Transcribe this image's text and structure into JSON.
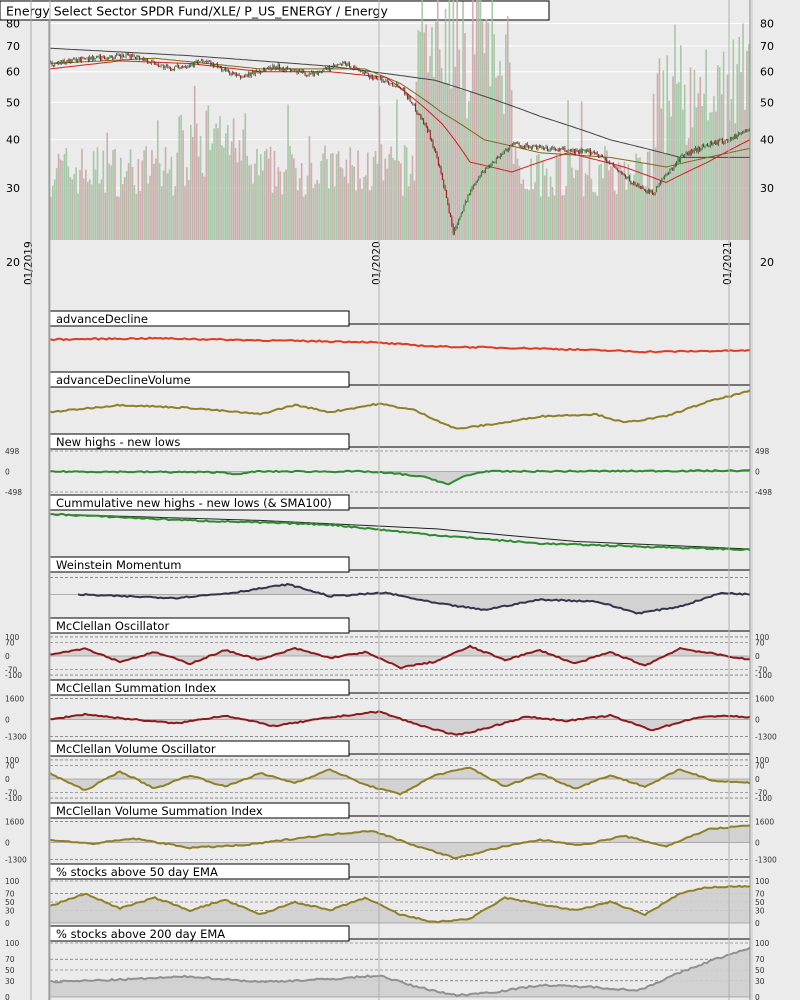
{
  "chart_data": {
    "type": "line",
    "title": "Energy Select Sector SPDR Fund/XLE/ P_US_ENERGY / Energy",
    "main": {
      "subtype": "candlestick",
      "y_scale": "log",
      "ylim": [
        22,
        92
      ],
      "y_ticks_left": [
        80,
        70,
        60,
        50,
        40,
        30,
        20
      ],
      "y_ticks_right": [
        80,
        70,
        60,
        50,
        40,
        30,
        20
      ],
      "x_ticks": [
        "01/2019",
        "01/2020",
        "01/2021"
      ],
      "price_path": [
        {
          "x": 0.0,
          "y": 63
        },
        {
          "x": 0.05,
          "y": 65
        },
        {
          "x": 0.12,
          "y": 66
        },
        {
          "x": 0.17,
          "y": 61
        },
        {
          "x": 0.22,
          "y": 64
        },
        {
          "x": 0.27,
          "y": 58
        },
        {
          "x": 0.32,
          "y": 62
        },
        {
          "x": 0.37,
          "y": 59
        },
        {
          "x": 0.42,
          "y": 63
        },
        {
          "x": 0.45,
          "y": 59
        },
        {
          "x": 0.5,
          "y": 55
        },
        {
          "x": 0.54,
          "y": 42
        },
        {
          "x": 0.575,
          "y": 23
        },
        {
          "x": 0.61,
          "y": 32
        },
        {
          "x": 0.66,
          "y": 39
        },
        {
          "x": 0.7,
          "y": 38
        },
        {
          "x": 0.78,
          "y": 37
        },
        {
          "x": 0.83,
          "y": 31
        },
        {
          "x": 0.86,
          "y": 29
        },
        {
          "x": 0.9,
          "y": 36
        },
        {
          "x": 0.94,
          "y": 39
        },
        {
          "x": 0.97,
          "y": 40
        },
        {
          "x": 1.0,
          "y": 43
        }
      ],
      "ma_red": [
        {
          "x": 0.0,
          "y": 61
        },
        {
          "x": 0.1,
          "y": 64
        },
        {
          "x": 0.2,
          "y": 63
        },
        {
          "x": 0.3,
          "y": 60
        },
        {
          "x": 0.4,
          "y": 60
        },
        {
          "x": 0.48,
          "y": 58
        },
        {
          "x": 0.56,
          "y": 44
        },
        {
          "x": 0.6,
          "y": 35
        },
        {
          "x": 0.66,
          "y": 33
        },
        {
          "x": 0.74,
          "y": 37
        },
        {
          "x": 0.82,
          "y": 34
        },
        {
          "x": 0.88,
          "y": 31
        },
        {
          "x": 0.94,
          "y": 35
        },
        {
          "x": 1.0,
          "y": 40
        }
      ],
      "ma_olive": [
        {
          "x": 0.0,
          "y": 63
        },
        {
          "x": 0.15,
          "y": 65
        },
        {
          "x": 0.3,
          "y": 61
        },
        {
          "x": 0.45,
          "y": 61
        },
        {
          "x": 0.5,
          "y": 56
        },
        {
          "x": 0.56,
          "y": 47
        },
        {
          "x": 0.62,
          "y": 40
        },
        {
          "x": 0.7,
          "y": 37
        },
        {
          "x": 0.8,
          "y": 36
        },
        {
          "x": 0.88,
          "y": 34
        },
        {
          "x": 1.0,
          "y": 38
        }
      ],
      "ma_gray": [
        {
          "x": 0.0,
          "y": 69
        },
        {
          "x": 0.2,
          "y": 66
        },
        {
          "x": 0.4,
          "y": 62
        },
        {
          "x": 0.55,
          "y": 57
        },
        {
          "x": 0.7,
          "y": 46
        },
        {
          "x": 0.8,
          "y": 40
        },
        {
          "x": 0.9,
          "y": 36
        },
        {
          "x": 1.0,
          "y": 36
        }
      ]
    },
    "panels": [
      {
        "title": "advanceDecline",
        "color": "#e03a20",
        "fill": false,
        "left_ticks": [],
        "right_ticks": [],
        "series": [
          {
            "x": 0,
            "y": 0.72
          },
          {
            "x": 0.15,
            "y": 0.75
          },
          {
            "x": 0.3,
            "y": 0.7
          },
          {
            "x": 0.45,
            "y": 0.66
          },
          {
            "x": 0.55,
            "y": 0.55
          },
          {
            "x": 0.7,
            "y": 0.5
          },
          {
            "x": 0.85,
            "y": 0.42
          },
          {
            "x": 1.0,
            "y": 0.45
          }
        ]
      },
      {
        "title": "advanceDeclineVolume",
        "color": "#8f7f25",
        "fill": false,
        "left_ticks": [],
        "right_ticks": [],
        "series": [
          {
            "x": 0,
            "y": 0.45
          },
          {
            "x": 0.1,
            "y": 0.62
          },
          {
            "x": 0.2,
            "y": 0.55
          },
          {
            "x": 0.3,
            "y": 0.4
          },
          {
            "x": 0.35,
            "y": 0.62
          },
          {
            "x": 0.4,
            "y": 0.45
          },
          {
            "x": 0.47,
            "y": 0.65
          },
          {
            "x": 0.52,
            "y": 0.5
          },
          {
            "x": 0.58,
            "y": 0.05
          },
          {
            "x": 0.65,
            "y": 0.2
          },
          {
            "x": 0.7,
            "y": 0.35
          },
          {
            "x": 0.78,
            "y": 0.4
          },
          {
            "x": 0.82,
            "y": 0.2
          },
          {
            "x": 0.88,
            "y": 0.35
          },
          {
            "x": 0.94,
            "y": 0.7
          },
          {
            "x": 1.0,
            "y": 0.95
          }
        ]
      },
      {
        "title": "New highs - new lows",
        "color": "#2e8a2e",
        "fill": true,
        "left_ticks": [
          "498",
          "0",
          "-498"
        ],
        "right_ticks": [
          "498",
          "0",
          "-498"
        ],
        "series": [
          {
            "x": 0,
            "y": 0
          },
          {
            "x": 0.25,
            "y": -20
          },
          {
            "x": 0.27,
            "y": -80
          },
          {
            "x": 0.29,
            "y": 0
          },
          {
            "x": 0.45,
            "y": 0
          },
          {
            "x": 0.5,
            "y": -60
          },
          {
            "x": 0.54,
            "y": -150
          },
          {
            "x": 0.57,
            "y": -320
          },
          {
            "x": 0.59,
            "y": -120
          },
          {
            "x": 0.62,
            "y": 0
          },
          {
            "x": 1.0,
            "y": 20
          }
        ]
      },
      {
        "title": "Cummulative new highs - new lows (& SMA100)",
        "color": "#2e8a2e",
        "fill": false,
        "left_ticks": [],
        "right_ticks": [],
        "series": [
          {
            "x": 0,
            "y": 0.95
          },
          {
            "x": 0.2,
            "y": 0.8
          },
          {
            "x": 0.4,
            "y": 0.7
          },
          {
            "x": 0.55,
            "y": 0.45
          },
          {
            "x": 0.7,
            "y": 0.25
          },
          {
            "x": 1.0,
            "y": 0.1
          }
        ],
        "sma": [
          {
            "x": 0,
            "y": 0.95
          },
          {
            "x": 0.3,
            "y": 0.8
          },
          {
            "x": 0.55,
            "y": 0.6
          },
          {
            "x": 0.75,
            "y": 0.3
          },
          {
            "x": 1.0,
            "y": 0.12
          }
        ]
      },
      {
        "title": "Weinstein Momentum",
        "color": "#33334d",
        "fill": true,
        "left_ticks": [],
        "right_ticks": [],
        "series": [
          {
            "x": 0.04,
            "y": 0.0
          },
          {
            "x": 0.1,
            "y": -0.05
          },
          {
            "x": 0.18,
            "y": -0.1
          },
          {
            "x": 0.26,
            "y": 0.05
          },
          {
            "x": 0.34,
            "y": 0.3
          },
          {
            "x": 0.4,
            "y": -0.05
          },
          {
            "x": 0.48,
            "y": 0.05
          },
          {
            "x": 0.55,
            "y": -0.25
          },
          {
            "x": 0.62,
            "y": -0.45
          },
          {
            "x": 0.7,
            "y": -0.15
          },
          {
            "x": 0.78,
            "y": -0.2
          },
          {
            "x": 0.84,
            "y": -0.55
          },
          {
            "x": 0.9,
            "y": -0.35
          },
          {
            "x": 0.96,
            "y": 0.05
          },
          {
            "x": 1.0,
            "y": 0.0
          }
        ]
      },
      {
        "title": "McClellan Oscillator",
        "color": "#8b1a1a",
        "fill": true,
        "left_ticks": [
          "100",
          "70",
          "0",
          "-70",
          "-100"
        ],
        "right_ticks": [
          "100",
          "70",
          "0",
          "-70",
          "-100"
        ],
        "series": [
          {
            "x": 0,
            "y": 10
          },
          {
            "x": 0.05,
            "y": 40
          },
          {
            "x": 0.1,
            "y": -30
          },
          {
            "x": 0.15,
            "y": 20
          },
          {
            "x": 0.2,
            "y": -40
          },
          {
            "x": 0.25,
            "y": 30
          },
          {
            "x": 0.3,
            "y": -20
          },
          {
            "x": 0.35,
            "y": 40
          },
          {
            "x": 0.4,
            "y": -10
          },
          {
            "x": 0.45,
            "y": 20
          },
          {
            "x": 0.5,
            "y": -60
          },
          {
            "x": 0.55,
            "y": -30
          },
          {
            "x": 0.6,
            "y": 50
          },
          {
            "x": 0.65,
            "y": -20
          },
          {
            "x": 0.7,
            "y": 30
          },
          {
            "x": 0.75,
            "y": -40
          },
          {
            "x": 0.8,
            "y": 20
          },
          {
            "x": 0.85,
            "y": -50
          },
          {
            "x": 0.9,
            "y": 40
          },
          {
            "x": 0.95,
            "y": 10
          },
          {
            "x": 1.0,
            "y": -20
          }
        ]
      },
      {
        "title": "McClellan Summation Index",
        "color": "#8b1a1a",
        "fill": true,
        "left_ticks": [
          "1600",
          "0",
          "-1300"
        ],
        "right_ticks": [
          "1600",
          "0",
          "-1300"
        ],
        "series": [
          {
            "x": 0,
            "y": 0
          },
          {
            "x": 0.05,
            "y": 400
          },
          {
            "x": 0.1,
            "y": 100
          },
          {
            "x": 0.18,
            "y": -300
          },
          {
            "x": 0.25,
            "y": 300
          },
          {
            "x": 0.32,
            "y": -500
          },
          {
            "x": 0.4,
            "y": 150
          },
          {
            "x": 0.47,
            "y": 600
          },
          {
            "x": 0.52,
            "y": -300
          },
          {
            "x": 0.58,
            "y": -1200
          },
          {
            "x": 0.62,
            "y": -700
          },
          {
            "x": 0.68,
            "y": 200
          },
          {
            "x": 0.74,
            "y": -100
          },
          {
            "x": 0.8,
            "y": 300
          },
          {
            "x": 0.86,
            "y": -800
          },
          {
            "x": 0.92,
            "y": 100
          },
          {
            "x": 0.96,
            "y": 300
          },
          {
            "x": 1.0,
            "y": 150
          }
        ]
      },
      {
        "title": "McClellan Volume Oscillator",
        "color": "#8f7f25",
        "fill": true,
        "left_ticks": [
          "100",
          "70",
          "0",
          "-70",
          "-100"
        ],
        "right_ticks": [
          "100",
          "70",
          "0",
          "-70",
          "-100"
        ],
        "series": [
          {
            "x": 0,
            "y": 30
          },
          {
            "x": 0.05,
            "y": -60
          },
          {
            "x": 0.1,
            "y": 40
          },
          {
            "x": 0.15,
            "y": -50
          },
          {
            "x": 0.2,
            "y": 20
          },
          {
            "x": 0.25,
            "y": -40
          },
          {
            "x": 0.3,
            "y": 30
          },
          {
            "x": 0.35,
            "y": -20
          },
          {
            "x": 0.4,
            "y": 50
          },
          {
            "x": 0.45,
            "y": -30
          },
          {
            "x": 0.5,
            "y": -80
          },
          {
            "x": 0.55,
            "y": 20
          },
          {
            "x": 0.6,
            "y": 60
          },
          {
            "x": 0.65,
            "y": -40
          },
          {
            "x": 0.7,
            "y": 30
          },
          {
            "x": 0.75,
            "y": -50
          },
          {
            "x": 0.8,
            "y": 20
          },
          {
            "x": 0.85,
            "y": -40
          },
          {
            "x": 0.9,
            "y": 50
          },
          {
            "x": 0.95,
            "y": -10
          },
          {
            "x": 1.0,
            "y": -20
          }
        ]
      },
      {
        "title": "McClellan Volume Summation Index",
        "color": "#8f7f25",
        "fill": true,
        "left_ticks": [
          "1600",
          "0",
          "-1300"
        ],
        "right_ticks": [
          "1600",
          "0",
          "-1300"
        ],
        "series": [
          {
            "x": 0,
            "y": 200
          },
          {
            "x": 0.06,
            "y": -100
          },
          {
            "x": 0.12,
            "y": 300
          },
          {
            "x": 0.2,
            "y": -400
          },
          {
            "x": 0.28,
            "y": -200
          },
          {
            "x": 0.35,
            "y": 300
          },
          {
            "x": 0.4,
            "y": 600
          },
          {
            "x": 0.46,
            "y": 900
          },
          {
            "x": 0.52,
            "y": -200
          },
          {
            "x": 0.58,
            "y": -1200
          },
          {
            "x": 0.64,
            "y": -400
          },
          {
            "x": 0.7,
            "y": 200
          },
          {
            "x": 0.76,
            "y": -200
          },
          {
            "x": 0.82,
            "y": 500
          },
          {
            "x": 0.88,
            "y": -300
          },
          {
            "x": 0.94,
            "y": 1000
          },
          {
            "x": 1.0,
            "y": 1300
          }
        ]
      },
      {
        "title": "% stocks above 50 day EMA",
        "color": "#8f7f25",
        "fill": true,
        "left_ticks": [
          "100",
          "70",
          "50",
          "30",
          "0"
        ],
        "right_ticks": [
          "100",
          "70",
          "50",
          "30",
          "0"
        ],
        "series": [
          {
            "x": 0,
            "y": 40
          },
          {
            "x": 0.05,
            "y": 70
          },
          {
            "x": 0.1,
            "y": 35
          },
          {
            "x": 0.15,
            "y": 60
          },
          {
            "x": 0.2,
            "y": 30
          },
          {
            "x": 0.25,
            "y": 55
          },
          {
            "x": 0.3,
            "y": 20
          },
          {
            "x": 0.35,
            "y": 50
          },
          {
            "x": 0.4,
            "y": 30
          },
          {
            "x": 0.45,
            "y": 60
          },
          {
            "x": 0.5,
            "y": 20
          },
          {
            "x": 0.55,
            "y": 2
          },
          {
            "x": 0.6,
            "y": 10
          },
          {
            "x": 0.65,
            "y": 60
          },
          {
            "x": 0.7,
            "y": 45
          },
          {
            "x": 0.75,
            "y": 30
          },
          {
            "x": 0.8,
            "y": 50
          },
          {
            "x": 0.85,
            "y": 20
          },
          {
            "x": 0.9,
            "y": 70
          },
          {
            "x": 0.94,
            "y": 85
          },
          {
            "x": 1.0,
            "y": 88
          }
        ]
      },
      {
        "title": "% stocks above 200 day EMA",
        "color": "#909090",
        "fill": true,
        "left_ticks": [
          "100",
          "70",
          "50",
          "30",
          "0"
        ],
        "right_ticks": [
          "100",
          "70",
          "50",
          "30",
          "0"
        ],
        "series": [
          {
            "x": 0,
            "y": 28
          },
          {
            "x": 0.1,
            "y": 32
          },
          {
            "x": 0.2,
            "y": 38
          },
          {
            "x": 0.3,
            "y": 28
          },
          {
            "x": 0.4,
            "y": 33
          },
          {
            "x": 0.47,
            "y": 40
          },
          {
            "x": 0.52,
            "y": 20
          },
          {
            "x": 0.58,
            "y": 3
          },
          {
            "x": 0.64,
            "y": 10
          },
          {
            "x": 0.7,
            "y": 22
          },
          {
            "x": 0.78,
            "y": 18
          },
          {
            "x": 0.84,
            "y": 12
          },
          {
            "x": 0.9,
            "y": 45
          },
          {
            "x": 0.95,
            "y": 70
          },
          {
            "x": 1.0,
            "y": 90
          }
        ]
      }
    ]
  },
  "colors": {
    "up_candle": "#2e8b2e",
    "down_candle": "#b01818",
    "volume_up": "#9dc29d",
    "volume_down": "#c9a3a3",
    "panel_bg": "#ebebeb"
  }
}
